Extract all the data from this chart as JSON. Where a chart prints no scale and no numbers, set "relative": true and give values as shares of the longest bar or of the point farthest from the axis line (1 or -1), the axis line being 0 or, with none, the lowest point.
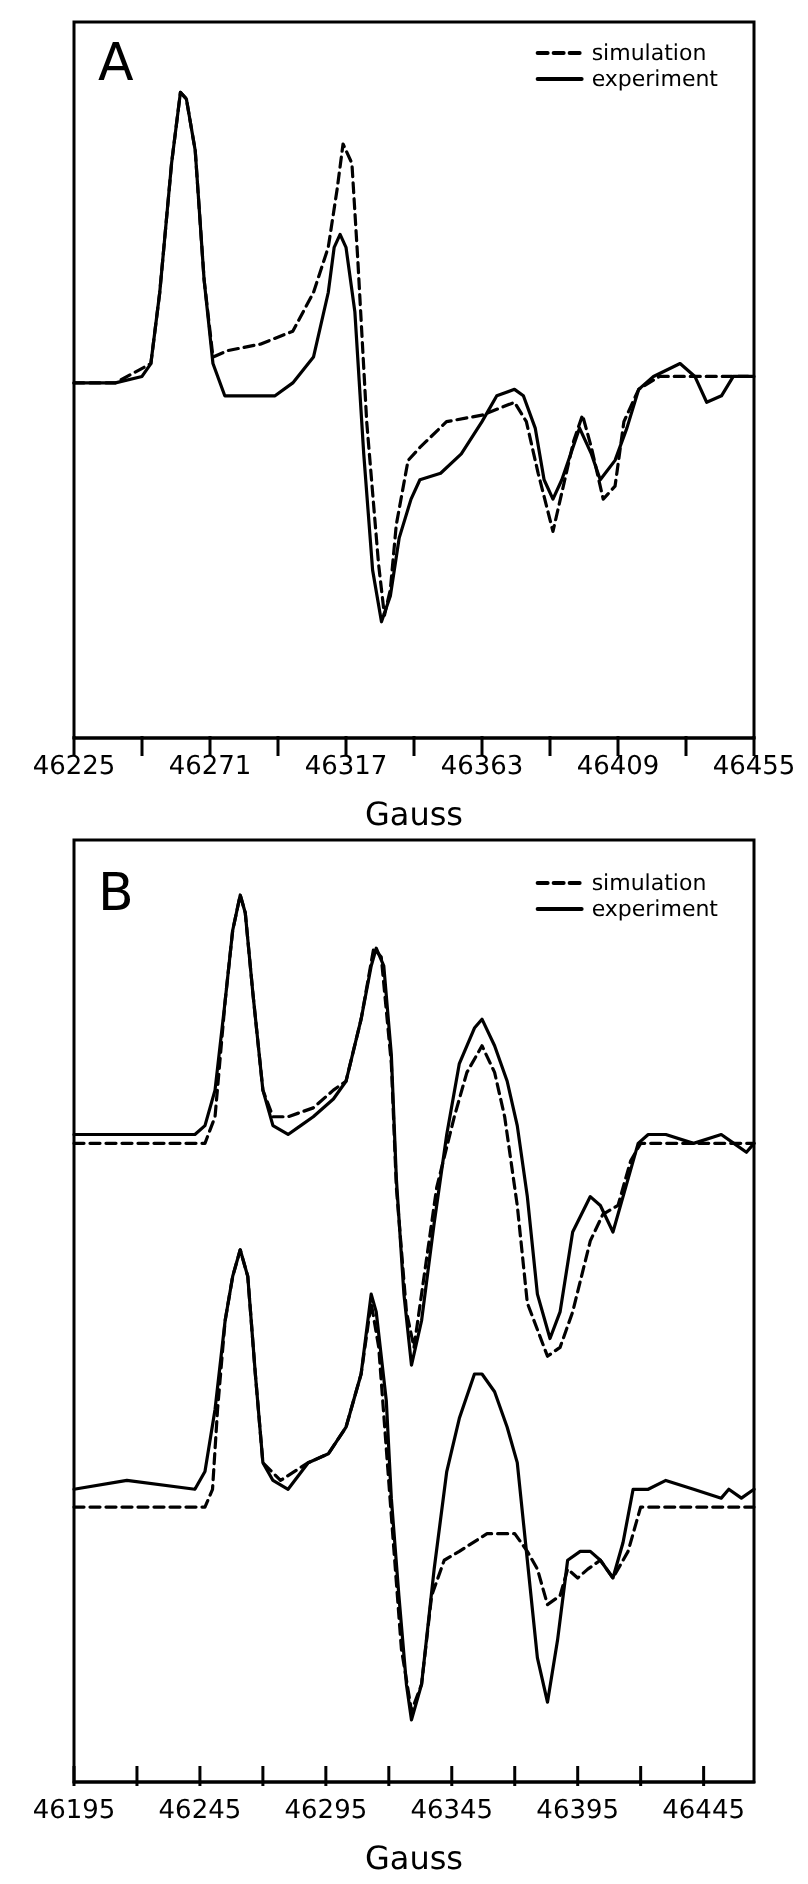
{
  "chart_data": [
    {
      "type": "line",
      "title": "A",
      "xlabel": "Gauss",
      "relative": true,
      "legend": "top right",
      "tick_labels": "x",
      "xlim": [
        46225,
        46455
      ],
      "xticks": [
        46225,
        {
          "value": 46248,
          "label": null
        },
        46271,
        {
          "value": 46294,
          "label": null
        },
        46317,
        {
          "value": 46340,
          "label": null
        },
        46363,
        {
          "value": 46386,
          "label": null
        },
        46409,
        {
          "value": 46432,
          "label": null
        },
        46455
      ],
      "series": [
        {
          "name": "simulation",
          "color": "#000000",
          "line_style": "dashed",
          "x": [
            46225,
            46239,
            46251,
            46254,
            46258,
            46261,
            46263,
            46266,
            46269,
            46272,
            46277,
            46288,
            46299,
            46306,
            46311,
            46314,
            46316,
            46319,
            46321,
            46324,
            46328,
            46330,
            46332,
            46334,
            46338,
            46342,
            46351,
            46363,
            46374,
            46378,
            46382,
            46387,
            46391,
            46394,
            46397,
            46400,
            46404,
            46408,
            46411,
            46416,
            46423,
            46455
          ],
          "values": [
            0.55,
            0.55,
            0.58,
            0.69,
            0.89,
            1,
            0.99,
            0.91,
            0.71,
            0.59,
            0.6,
            0.61,
            0.63,
            0.69,
            0.76,
            0.85,
            0.92,
            0.89,
            0.74,
            0.49,
            0.27,
            0.19,
            0.23,
            0.33,
            0.43,
            0.45,
            0.49,
            0.5,
            0.52,
            0.49,
            0.41,
            0.32,
            0.4,
            0.46,
            0.5,
            0.45,
            0.37,
            0.39,
            0.49,
            0.54,
            0.56,
            0.56
          ]
        },
        {
          "name": "experiment",
          "color": "#000000",
          "line_style": "solid",
          "x": [
            46225,
            46239,
            46248,
            46251,
            46254,
            46258,
            46261,
            46263,
            46266,
            46269,
            46272,
            46276,
            46281,
            46293,
            46299,
            46306,
            46311,
            46313,
            46315,
            46317,
            46320,
            46323,
            46326,
            46329,
            46332,
            46335,
            46339,
            46342,
            46349,
            46356,
            46363,
            46368,
            46374,
            46377,
            46381,
            46384,
            46387,
            46390,
            46393,
            46396,
            46400,
            46403,
            46408,
            46412,
            46416,
            46421,
            46430,
            46435,
            46439,
            46444,
            46448,
            46455
          ],
          "values": [
            0.55,
            0.55,
            0.56,
            0.58,
            0.69,
            0.89,
            1,
            0.99,
            0.91,
            0.71,
            0.58,
            0.53,
            0.53,
            0.53,
            0.55,
            0.59,
            0.69,
            0.76,
            0.78,
            0.76,
            0.66,
            0.44,
            0.26,
            0.18,
            0.22,
            0.31,
            0.37,
            0.4,
            0.41,
            0.44,
            0.49,
            0.53,
            0.54,
            0.53,
            0.48,
            0.4,
            0.37,
            0.4,
            0.44,
            0.48,
            0.44,
            0.4,
            0.43,
            0.48,
            0.54,
            0.56,
            0.58,
            0.56,
            0.52,
            0.53,
            0.56,
            0.56
          ]
        }
      ]
    },
    {
      "type": "line",
      "title": "B",
      "xlabel": "Gauss",
      "relative": true,
      "legend": "top right",
      "tick_labels": "x",
      "xlim": [
        46195,
        46465
      ],
      "xticks": [
        46195,
        {
          "value": 46220,
          "label": null
        },
        46245,
        {
          "value": 46270,
          "label": null
        },
        46295,
        {
          "value": 46320,
          "label": null
        },
        46345,
        {
          "value": 46370,
          "label": null
        },
        46395,
        {
          "value": 46420,
          "label": null
        },
        46445
      ],
      "series": [
        {
          "name": "simulation",
          "color": "#000000",
          "line_style": "dashed",
          "x": [
            46195,
            46247,
            46251,
            46255,
            46258,
            46261,
            46263,
            46266,
            46270,
            46274,
            46280,
            46290,
            46298,
            46303,
            46309,
            46314,
            46317,
            46321,
            46323,
            46327,
            46330,
            46334,
            46339,
            46346,
            46351,
            46357,
            46362,
            46366,
            46371,
            46375,
            46383,
            46388,
            46393,
            46400,
            46405,
            46411,
            46416,
            46420,
            46465
          ],
          "values": [
            0.72,
            0.72,
            0.75,
            0.88,
            0.96,
            1,
            0.98,
            0.89,
            0.78,
            0.75,
            0.75,
            0.76,
            0.78,
            0.79,
            0.86,
            0.94,
            0.93,
            0.81,
            0.67,
            0.53,
            0.49,
            0.57,
            0.67,
            0.75,
            0.8,
            0.83,
            0.8,
            0.75,
            0.65,
            0.54,
            0.48,
            0.49,
            0.53,
            0.61,
            0.64,
            0.65,
            0.7,
            0.72,
            0.72
          ]
        },
        {
          "name": "experiment",
          "color": "#000000",
          "line_style": "solid",
          "x": [
            46195,
            46216,
            46243,
            46247,
            46251,
            46255,
            46258,
            46261,
            46263,
            46266,
            46270,
            46274,
            46280,
            46285,
            46290,
            46298,
            46303,
            46309,
            46313,
            46315,
            46318,
            46321,
            46323,
            46326,
            46329,
            46333,
            46338,
            46343,
            46348,
            46354,
            46357,
            46362,
            46367,
            46371,
            46375,
            46379,
            46384,
            46388,
            46393,
            46400,
            46404,
            46409,
            46413,
            46419,
            46423,
            46430,
            46441,
            46452,
            46457,
            46462,
            46465
          ],
          "values": [
            0.73,
            0.73,
            0.73,
            0.74,
            0.78,
            0.88,
            0.96,
            1,
            0.98,
            0.89,
            0.78,
            0.74,
            0.73,
            0.74,
            0.75,
            0.77,
            0.79,
            0.86,
            0.92,
            0.94,
            0.92,
            0.82,
            0.68,
            0.55,
            0.47,
            0.52,
            0.63,
            0.73,
            0.81,
            0.85,
            0.86,
            0.83,
            0.79,
            0.74,
            0.66,
            0.55,
            0.5,
            0.53,
            0.62,
            0.66,
            0.65,
            0.62,
            0.66,
            0.72,
            0.73,
            0.73,
            0.72,
            0.73,
            0.72,
            0.71,
            0.72
          ]
        },
        {
          "color": "#000000",
          "line_style": "dashed",
          "x": [
            46195,
            46247,
            46250,
            46252,
            46255,
            46258,
            46261,
            46264,
            46267,
            46270,
            46277,
            46288,
            46296,
            46303,
            46309,
            46313,
            46316,
            46321,
            46325,
            46329,
            46333,
            46337,
            46342,
            46348,
            46359,
            46370,
            46375,
            46379,
            46383,
            46388,
            46391,
            46395,
            46399,
            46404,
            46409,
            46415,
            46420,
            46465
          ],
          "values": [
            0.31,
            0.31,
            0.33,
            0.42,
            0.52,
            0.57,
            0.6,
            0.57,
            0.46,
            0.36,
            0.34,
            0.36,
            0.37,
            0.4,
            0.46,
            0.54,
            0.49,
            0.3,
            0.15,
            0.08,
            0.11,
            0.21,
            0.25,
            0.26,
            0.28,
            0.28,
            0.26,
            0.24,
            0.2,
            0.21,
            0.24,
            0.23,
            0.24,
            0.25,
            0.23,
            0.26,
            0.31,
            0.31
          ]
        },
        {
          "color": "#000000",
          "line_style": "solid",
          "x": [
            46195,
            46216,
            46243,
            46247,
            46251,
            46255,
            46258,
            46261,
            46264,
            46267,
            46270,
            46274,
            46280,
            46288,
            46296,
            46303,
            46309,
            46313,
            46315,
            46319,
            46321,
            46324,
            46327,
            46329,
            46333,
            46338,
            46343,
            46348,
            46354,
            46357,
            46362,
            46367,
            46371,
            46375,
            46379,
            46383,
            46387,
            46391,
            46396,
            46400,
            46404,
            46409,
            46413,
            46417,
            46423,
            46430,
            46441,
            46452,
            46455,
            46460,
            46465
          ],
          "values": [
            0.33,
            0.34,
            0.33,
            0.35,
            0.42,
            0.52,
            0.57,
            0.6,
            0.57,
            0.46,
            0.36,
            0.34,
            0.33,
            0.36,
            0.37,
            0.4,
            0.46,
            0.55,
            0.53,
            0.43,
            0.32,
            0.21,
            0.11,
            0.07,
            0.11,
            0.24,
            0.35,
            0.41,
            0.46,
            0.46,
            0.44,
            0.4,
            0.36,
            0.25,
            0.14,
            0.09,
            0.16,
            0.25,
            0.26,
            0.26,
            0.25,
            0.23,
            0.27,
            0.33,
            0.33,
            0.34,
            0.33,
            0.32,
            0.33,
            0.32,
            0.33
          ]
        }
      ]
    }
  ]
}
